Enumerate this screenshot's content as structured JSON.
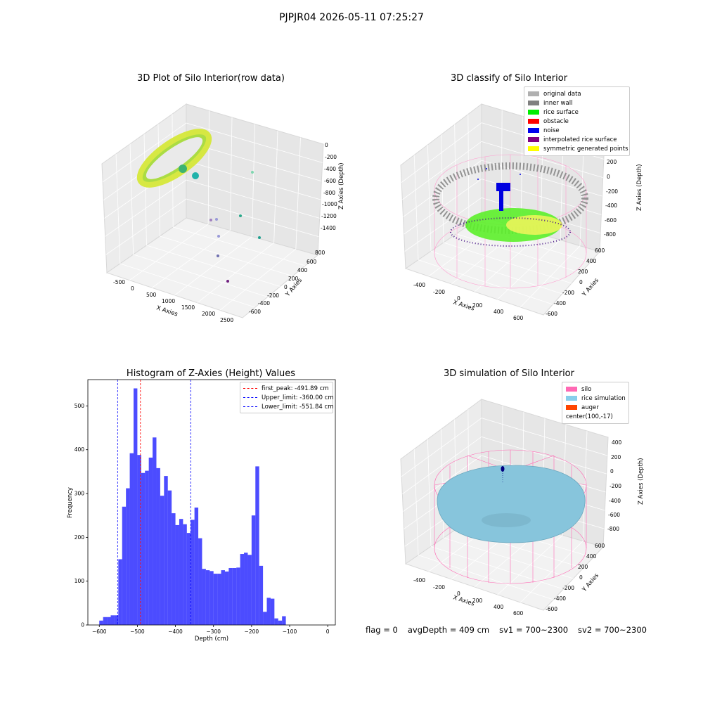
{
  "suptitle": "PJPJR04 2026-05-11 07:25:27",
  "panels": {
    "raw": {
      "title": "3D Plot of Silo Interior(row data)",
      "xlabel": "X Axies",
      "ylabel": "Y Axies",
      "zlabel": "Z Axies (Depth)",
      "xticks": [
        "-500",
        "0",
        "500",
        "1000",
        "1500",
        "2000",
        "2500"
      ],
      "yticks": [
        "800",
        "600",
        "400",
        "200",
        "0",
        "-200",
        "-400",
        "-600"
      ],
      "zticks": [
        "0",
        "-200",
        "-400",
        "-600",
        "-800",
        "-1000",
        "-1200",
        "-1400"
      ]
    },
    "classify": {
      "title": "3D classify of Silo Interior",
      "xlabel": "X Axies",
      "ylabel": "Y Axies",
      "zlabel": "Z Axies (Depth)",
      "xticks": [
        "-400",
        "-200",
        "0",
        "200",
        "400",
        "600"
      ],
      "yticks": [
        "600",
        "400",
        "200",
        "0",
        "-200",
        "-400",
        "-600"
      ],
      "zticks": [
        "200",
        "0",
        "-200",
        "-400",
        "-600",
        "-800"
      ],
      "zticks_top": "0",
      "legend": [
        {
          "label": "original data",
          "color": "#b0b0b0"
        },
        {
          "label": "inner wall",
          "color": "#808080"
        },
        {
          "label": "rice surface",
          "color": "#00ee00"
        },
        {
          "label": "obstacle",
          "color": "#ff0000"
        },
        {
          "label": "noise",
          "color": "#0000ee"
        },
        {
          "label": "interpolated rice surface",
          "color": "#800080"
        },
        {
          "label": "symmetric generated points",
          "color": "#ffff00"
        }
      ]
    },
    "simulation": {
      "title": "3D simulation of Silo Interior",
      "xlabel": "X Axies",
      "ylabel": "Y Axies",
      "zlabel": "Z Axies (Depth)",
      "xticks": [
        "-400",
        "-200",
        "0",
        "200",
        "400",
        "600"
      ],
      "yticks": [
        "600",
        "400",
        "200",
        "0",
        "-200",
        "-400",
        "-600"
      ],
      "zticks": [
        "400",
        "200",
        "0",
        "-200",
        "-400",
        "-600",
        "-800"
      ],
      "legend": [
        {
          "label": "silo",
          "color": "#ff69b4"
        },
        {
          "label": "rice simulation",
          "color": "#87ceeb"
        },
        {
          "label": "auger",
          "color": "#ff4500"
        },
        {
          "label": "center(100,-17)",
          "color": ""
        }
      ]
    }
  },
  "footer": {
    "flag": "flag = 0",
    "avg": "avgDepth = 409 cm",
    "sv1": "sv1 = 700~2300",
    "sv2": "sv2 = 700~2300"
  },
  "chart_data": {
    "type": "bar",
    "title": "Histogram of Z-Axies (Height) Values",
    "xlabel": "Depth (cm)",
    "ylabel": "Frequency",
    "xlim": [
      -630,
      20
    ],
    "ylim": [
      0,
      560
    ],
    "xticks": [
      -600,
      -500,
      -400,
      -300,
      -200,
      -100,
      0
    ],
    "yticks": [
      0,
      100,
      200,
      300,
      400,
      500
    ],
    "bin_start": -600,
    "bin_width": 10,
    "color": "#0000ff",
    "values": [
      10,
      18,
      18,
      22,
      22,
      150,
      270,
      312,
      392,
      540,
      388,
      347,
      352,
      382,
      428,
      358,
      295,
      340,
      307,
      255,
      228,
      242,
      230,
      210,
      240,
      268,
      198,
      128,
      125,
      123,
      117,
      117,
      125,
      122,
      130,
      130,
      131,
      162,
      165,
      160,
      250,
      362,
      135,
      30,
      62,
      60,
      15,
      10,
      20
    ],
    "vlines": [
      {
        "label": "first_peak: -491.89 cm",
        "value": -491.89,
        "color": "#ff0000"
      },
      {
        "label": "Upper_limit: -360.00 cm",
        "value": -360.0,
        "color": "#0000ff"
      },
      {
        "label": "Lower_limit: -551.84 cm",
        "value": -551.84,
        "color": "#0000ff"
      }
    ]
  }
}
